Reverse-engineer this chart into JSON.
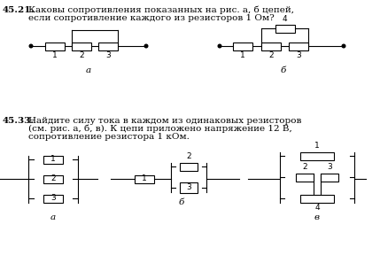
{
  "bg_color": "#ffffff",
  "text_color": "#000000",
  "label_a": "а",
  "label_b": "б",
  "label_v": "в",
  "t1_bold": "45.21.",
  "t1_text": "Каковы сопротивления показанных на рис. а, б цепей,",
  "t1_text2": "если сопротивление каждого из резисторов 1 Ом?",
  "t2_bold": "45.33.",
  "t2_text": "Найдите силу тока в каждом из одинаковых резисторов",
  "t2_text2": "(см. рис. а, б, в). К цепи приложено напряжение 12 В,",
  "t2_text3": "сопротивление резистора 1 кОм."
}
